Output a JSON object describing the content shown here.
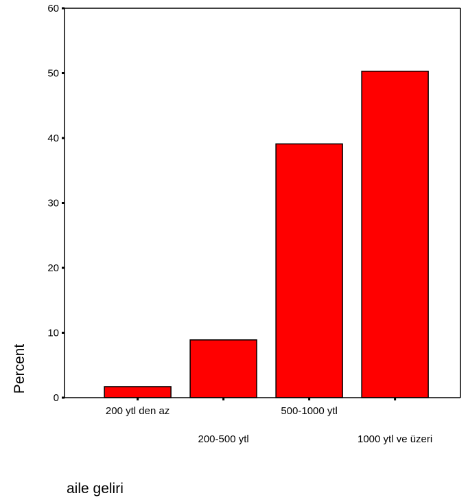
{
  "chart_data": {
    "type": "bar",
    "title": "",
    "xlabel": "aile geliri",
    "ylabel": "Percent",
    "categories": [
      "200 ytl den az",
      "200-500 ytl",
      "500-1000 ytl",
      "1000 ytl ve üzeri"
    ],
    "values": [
      1.7,
      8.9,
      39.1,
      50.3
    ],
    "ylim": [
      0,
      60
    ],
    "yticks": [
      0,
      10,
      20,
      30,
      40,
      50,
      60
    ],
    "grid": false,
    "legend": "none",
    "bar_color": "#ff0000",
    "bar_edge_color": "#000000"
  }
}
